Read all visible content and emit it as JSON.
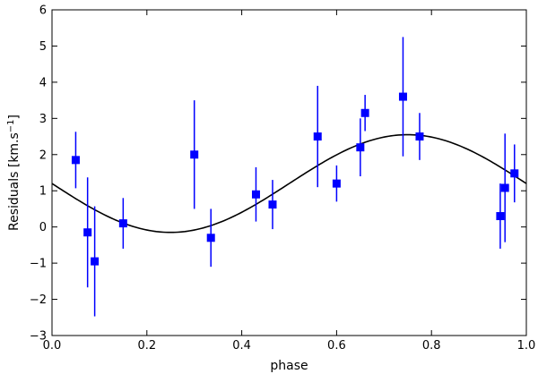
{
  "chart_data": {
    "type": "scatter",
    "xlabel": "phase",
    "ylabel": "Residuals [km.s",
    "ylabel_sup": "−1",
    "ylabel_end": "]",
    "xlim": [
      0.0,
      1.0
    ],
    "ylim": [
      -3,
      6
    ],
    "xticks": [
      {
        "value": 0.0,
        "label": "0.0"
      },
      {
        "value": 0.2,
        "label": "0.2"
      },
      {
        "value": 0.4,
        "label": "0.4"
      },
      {
        "value": 0.6,
        "label": "0.6"
      },
      {
        "value": 0.8,
        "label": "0.8"
      },
      {
        "value": 1.0,
        "label": "1.0"
      }
    ],
    "yticks": [
      {
        "value": -3,
        "label": "−3"
      },
      {
        "value": -2,
        "label": "−2"
      },
      {
        "value": -1,
        "label": "−1"
      },
      {
        "value": 0,
        "label": "0"
      },
      {
        "value": 1,
        "label": "1"
      },
      {
        "value": 2,
        "label": "2"
      },
      {
        "value": 3,
        "label": "3"
      },
      {
        "value": 4,
        "label": "4"
      },
      {
        "value": 5,
        "label": "5"
      },
      {
        "value": 6,
        "label": "6"
      }
    ],
    "grid": false,
    "series": [
      {
        "kind": "errorbar-points",
        "color": "#0000ff",
        "points": [
          {
            "x": 0.05,
            "y": 1.85,
            "err": 0.78
          },
          {
            "x": 0.075,
            "y": -0.15,
            "err": 1.52
          },
          {
            "x": 0.09,
            "y": -0.95,
            "err": 1.52
          },
          {
            "x": 0.15,
            "y": 0.1,
            "err": 0.7
          },
          {
            "x": 0.3,
            "y": 2.0,
            "err": 1.5
          },
          {
            "x": 0.335,
            "y": -0.3,
            "err": 0.8
          },
          {
            "x": 0.43,
            "y": 0.9,
            "err": 0.75
          },
          {
            "x": 0.465,
            "y": 0.62,
            "err": 0.68
          },
          {
            "x": 0.56,
            "y": 2.5,
            "err": 1.4
          },
          {
            "x": 0.6,
            "y": 1.2,
            "err": 0.5
          },
          {
            "x": 0.65,
            "y": 2.2,
            "err": 0.8
          },
          {
            "x": 0.66,
            "y": 3.15,
            "err": 0.5
          },
          {
            "x": 0.74,
            "y": 3.6,
            "err": 1.65
          },
          {
            "x": 0.775,
            "y": 2.5,
            "err": 0.65
          },
          {
            "x": 0.945,
            "y": 0.3,
            "err": 0.9
          },
          {
            "x": 0.955,
            "y": 1.08,
            "err": 1.5
          },
          {
            "x": 0.975,
            "y": 1.48,
            "err": 0.8
          }
        ]
      },
      {
        "kind": "sine-fit",
        "color": "#000000",
        "offset": 1.2,
        "amplitude": 1.35,
        "phase_of_max": 0.75,
        "period": 1.0
      }
    ]
  }
}
